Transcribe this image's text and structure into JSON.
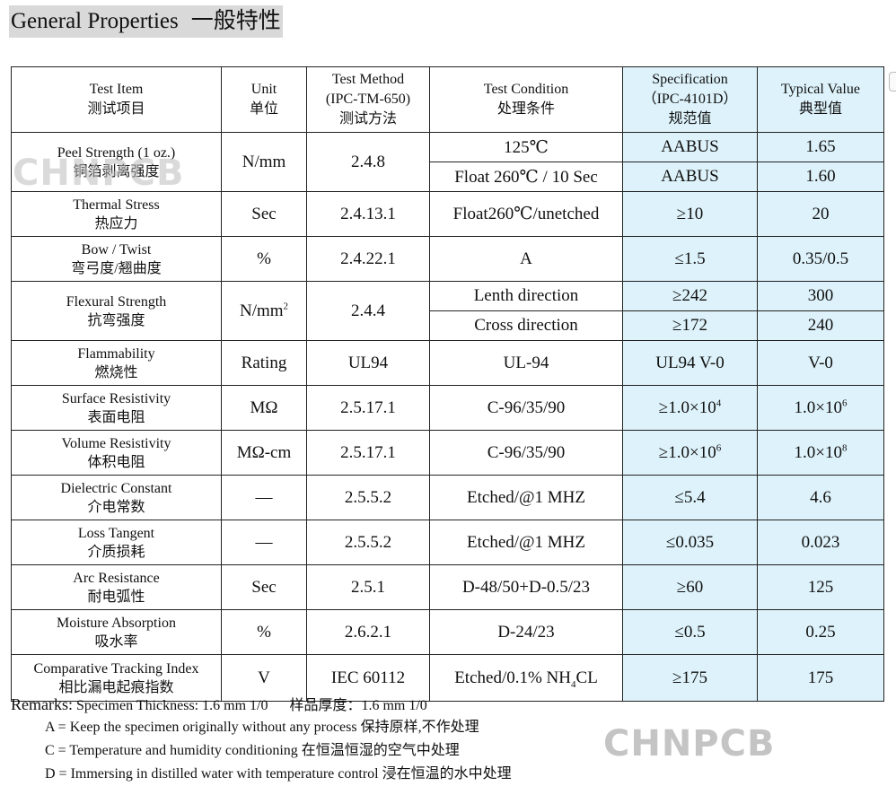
{
  "title": {
    "en": "General Properties",
    "zh": "一般特性"
  },
  "headers": [
    {
      "en": "Test Item",
      "zh": "测试项目"
    },
    {
      "en": "Unit",
      "zh": "单位"
    },
    {
      "en": "Test Method",
      "en2": "(IPC-TM-650)",
      "zh": "测试方法"
    },
    {
      "en": "Test Condition",
      "zh": "处理条件"
    },
    {
      "en": "Specification",
      "en2": "（IPC-4101D）",
      "zh": "规范值"
    },
    {
      "en": "Typical Value",
      "zh": "典型值"
    }
  ],
  "rows": [
    {
      "item_en": "Peel Strength (1 oz.)",
      "item_zh": "铜箔剥离强度",
      "unit": "N/mm",
      "method": "2.4.8",
      "subs": [
        {
          "cond": "125℃",
          "spec": "AABUS",
          "typ": "1.65"
        },
        {
          "cond": "Float 260℃ / 10 Sec",
          "spec": "AABUS",
          "typ": "1.60"
        }
      ]
    },
    {
      "item_en": "Thermal Stress",
      "item_zh": "热应力",
      "unit": "Sec",
      "method": "2.4.13.1",
      "cond": "Float260℃/unetched",
      "spec": "≥10",
      "typ": "20"
    },
    {
      "item_en": "Bow / Twist",
      "item_zh": "弯弓度/翘曲度",
      "unit": "%",
      "method": "2.4.22.1",
      "cond": "A",
      "spec": "≤1.5",
      "typ": "0.35/0.5"
    },
    {
      "item_en": "Flexural Strength",
      "item_zh": "抗弯强度",
      "unit": "N/mm",
      "unit_sup": "2",
      "method": "2.4.4",
      "subs": [
        {
          "cond": "Lenth direction",
          "spec": "≥242",
          "typ": "300"
        },
        {
          "cond": "Cross direction",
          "spec": "≥172",
          "typ": "240"
        }
      ]
    },
    {
      "item_en": "Flammability",
      "item_zh": "燃烧性",
      "unit": "Rating",
      "method": "UL94",
      "cond": "UL-94",
      "spec": "UL94 V-0",
      "typ": "V-0"
    },
    {
      "item_en": "Surface Resistivity",
      "item_zh": "表面电阻",
      "unit": "MΩ",
      "method": "2.5.17.1",
      "cond": "C-96/35/90",
      "spec": "≥1.0×10",
      "spec_sup": "4",
      "typ": "1.0×10",
      "typ_sup": "6"
    },
    {
      "item_en": "Volume Resistivity",
      "item_zh": "体积电阻",
      "unit": "MΩ-cm",
      "method": "2.5.17.1",
      "cond": "C-96/35/90",
      "spec": "≥1.0×10",
      "spec_sup": "6",
      "typ": "1.0×10",
      "typ_sup": "8"
    },
    {
      "item_en": "Dielectric Constant",
      "item_zh": "介电常数",
      "unit": "—",
      "method": "2.5.5.2",
      "cond": "Etched/@1 MHZ",
      "spec": "≤5.4",
      "typ": "4.6"
    },
    {
      "item_en": "Loss Tangent",
      "item_zh": "介质损耗",
      "unit": "—",
      "method": "2.5.5.2",
      "cond": "Etched/@1 MHZ",
      "spec": "≤0.035",
      "typ": "0.023"
    },
    {
      "item_en": "Arc Resistance",
      "item_zh": "耐电弧性",
      "unit": "Sec",
      "method": "2.5.1",
      "cond": "D-48/50+D-0.5/23",
      "spec": "≥60",
      "typ": "125"
    },
    {
      "item_en": "Moisture Absorption",
      "item_zh": "吸水率",
      "unit": "%",
      "method": "2.6.2.1",
      "cond": "D-24/23",
      "spec": "≤0.5",
      "typ": "0.25"
    },
    {
      "item_en": "Comparative Tracking Index",
      "item_zh": "相比漏电起痕指数",
      "unit": "V",
      "method": "IEC 60112",
      "cond": "Etched/0.1% NH",
      "cond_sub": "4",
      "cond_tail": "CL",
      "spec": "≥175",
      "typ": "175"
    }
  ],
  "remarks": {
    "lead": "Remarks:",
    "thickness": "Specimen Thickness: 1.6 mm 1/0      样品厚度：1.6 mm 1/0",
    "lines": [
      "A = Keep the specimen originally without any process  保持原样,不作处理",
      "C = Temperature and humidity conditioning 在恒温恒湿的空气中处理",
      "D = Immersing in distilled water with temperature control  浸在恒温的水中处理"
    ]
  },
  "watermark": "CHNPCB",
  "colors": {
    "highlight": "#ddf2fa",
    "title_bg": "#d9d9d9",
    "watermark": "#bdbdbd"
  }
}
